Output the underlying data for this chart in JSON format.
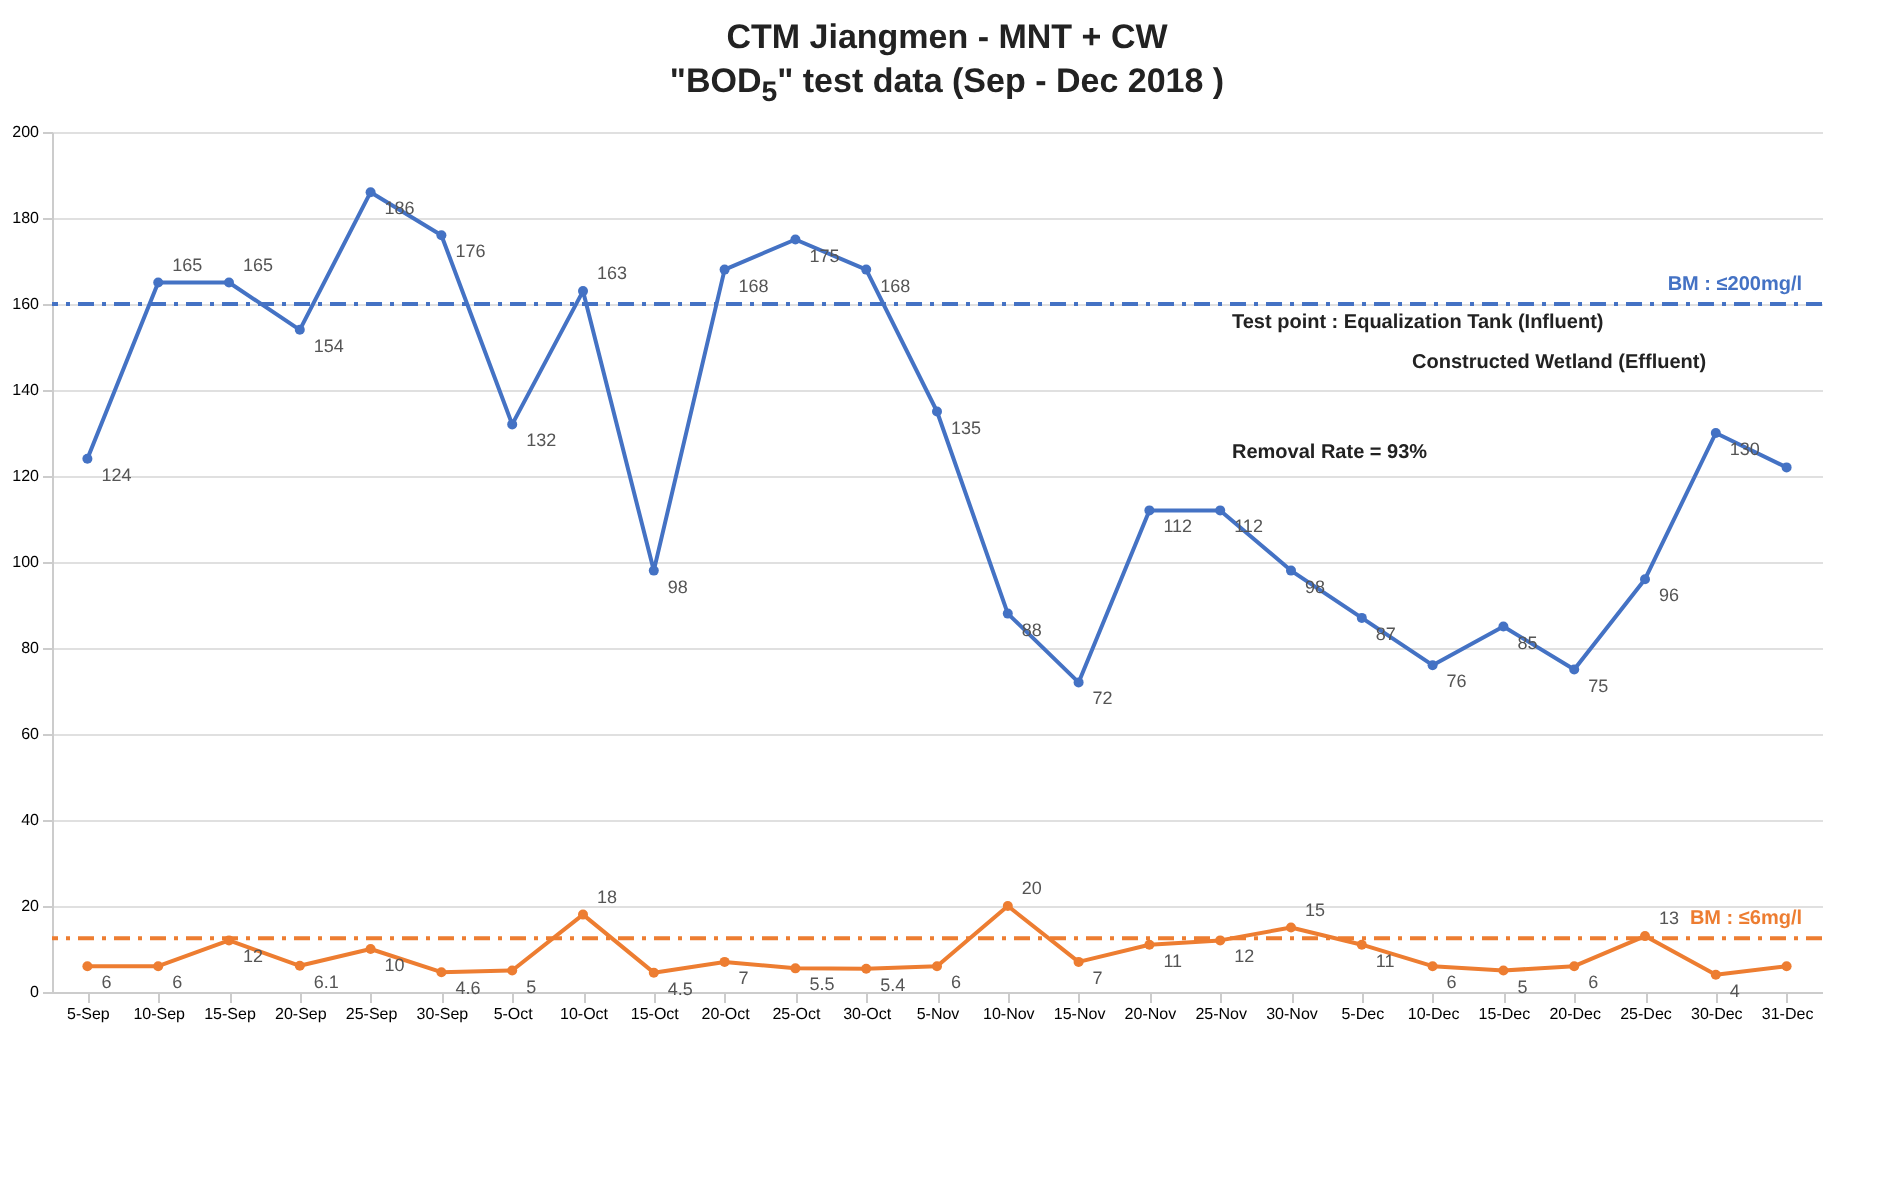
{
  "chart_data": {
    "type": "line",
    "title": "CTM Jiangmen - MNT + CW",
    "subtitle": "\"BOD$_{5}$\"   test data (Sep - Dec 2018 )",
    "categories": [
      "5-Sep",
      "10-Sep",
      "15-Sep",
      "20-Sep",
      "25-Sep",
      "30-Sep",
      "5-Oct",
      "10-Oct",
      "15-Oct",
      "20-Oct",
      "25-Oct",
      "30-Oct",
      "5-Nov",
      "10-Nov",
      "15-Nov",
      "20-Nov",
      "25-Nov",
      "30-Nov",
      "5-Dec",
      "10-Dec",
      "15-Dec",
      "20-Dec",
      "25-Dec",
      "30-Dec",
      "31-Dec"
    ],
    "series": [
      {
        "color": "#4472c4",
        "values": [
          124,
          165,
          165,
          154,
          186,
          176,
          132,
          163,
          98,
          168,
          175,
          168,
          135,
          88,
          72,
          112,
          112,
          98,
          87,
          76,
          85,
          75,
          96,
          130,
          122
        ],
        "value_labels": [
          "124",
          "165",
          "165",
          "154",
          "186",
          "176",
          "132",
          "163",
          "98",
          "168",
          "175",
          "168",
          "135",
          "88",
          "72",
          "112",
          "112",
          "98",
          "87",
          "76",
          "85",
          "75",
          "96",
          "130",
          null
        ]
      },
      {
        "color": "#ed7d31",
        "values": [
          6,
          6,
          12,
          6.1,
          10,
          4.6,
          5,
          18,
          4.5,
          7,
          5.5,
          5.4,
          6,
          20,
          7,
          11,
          12,
          15,
          11,
          6,
          5,
          6,
          13,
          4,
          6
        ],
        "value_labels": [
          "6",
          "6",
          "12",
          "6.1",
          "10",
          "4.6",
          "5",
          "18",
          "4.5",
          "7",
          "5.5",
          "5.4",
          "6",
          "20",
          "7",
          "11",
          "12",
          "15",
          "11",
          "6",
          "5",
          "6",
          "13",
          "4",
          null
        ]
      }
    ],
    "ylim": [
      0,
      200
    ],
    "yticks": [
      0,
      20,
      40,
      60,
      80,
      100,
      120,
      140,
      160,
      180,
      200
    ],
    "grid": "y",
    "marker": "circle",
    "line_style": "solid",
    "ref_lines": [
      {
        "axis": "y",
        "value": 160,
        "label": "BM : ≤200mg/l",
        "color": "#4472c4",
        "line_style": "dashdot"
      },
      {
        "axis": "y",
        "value": 12.5,
        "label": "BM : ≤6mg/l",
        "color": "#ed7d31",
        "line_style": "dashdot"
      }
    ],
    "annotations": [
      "Test point : Equalization Tank     (Influent)",
      "Constructed Wetland (Effluent)",
      "Removal Rate = 93%"
    ]
  }
}
